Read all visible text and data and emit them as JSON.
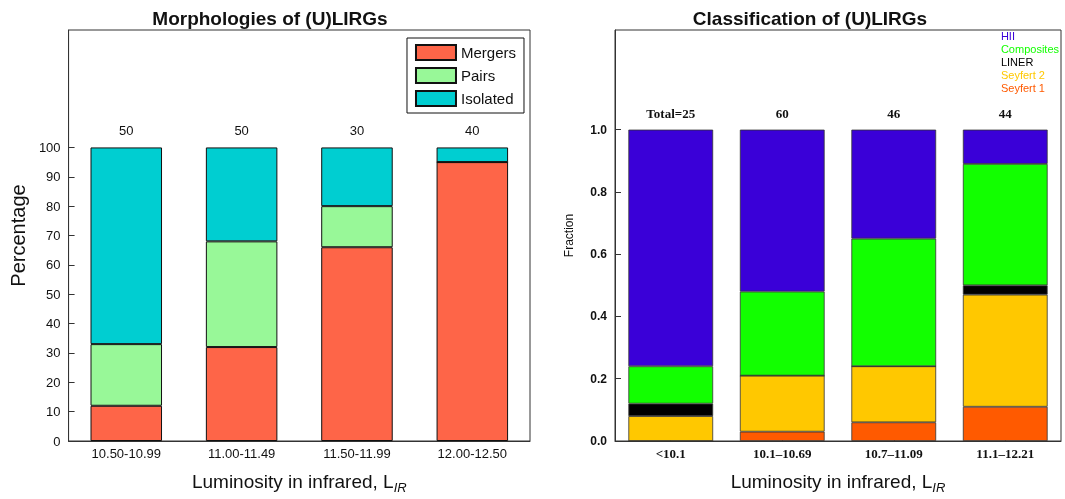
{
  "chart_data": [
    {
      "type": "bar",
      "title": "Morphologies of (U)LIRGs",
      "xlabel": "Luminosity in infrared, L$_{IR}$",
      "ylabel": "Percentage",
      "categories": [
        "10.50-10.99",
        "11.00-11.49",
        "11.50-11.99",
        "12.00-12.50"
      ],
      "stacked": true,
      "legend": "top right",
      "ylim": [
        0,
        140
      ],
      "yticks": [
        0,
        10,
        20,
        30,
        40,
        50,
        60,
        70,
        80,
        90,
        100
      ],
      "annotations": [
        {
          "text": "50",
          "x": "10.50-10.99",
          "y": 100
        },
        {
          "text": "50",
          "x": "11.00-11.49",
          "y": 100
        },
        {
          "text": "30",
          "x": "11.50-11.99",
          "y": 100
        },
        {
          "text": "40",
          "x": "12.00-12.50",
          "y": 100
        }
      ],
      "series": [
        {
          "name": "Mergers",
          "color": "#fe6548",
          "values": [
            12,
            32,
            66,
            95
          ]
        },
        {
          "name": "Pairs",
          "color": "#98f898",
          "values": [
            21,
            36,
            14,
            0
          ]
        },
        {
          "name": "Isolated",
          "color": "#00ced1",
          "values": [
            67,
            32,
            20,
            5
          ]
        }
      ]
    },
    {
      "type": "bar",
      "title": "Classification of (U)LIRGs",
      "xlabel": "Luminosity in infrared, L$_{IR}$",
      "ylabel": "Fraction",
      "categories": [
        "<10.1",
        "10.1–10.69",
        "10.7–11.09",
        "11.1–12.21"
      ],
      "stacked": true,
      "legend": "top right",
      "ylim": [
        0,
        1.32
      ],
      "yticks": [
        {
          "value": 0,
          "label": "0.0"
        },
        {
          "value": 0.2,
          "label": "0.2"
        },
        {
          "value": 0.4,
          "label": "0.4"
        },
        {
          "value": 0.6,
          "label": "0.6"
        },
        {
          "value": 0.8,
          "label": "0.8"
        },
        {
          "value": 1,
          "label": "1.0"
        }
      ],
      "annotations": [
        {
          "text": "Total=25",
          "x": "<10.1",
          "y": 1
        },
        {
          "text": "60",
          "x": "10.1–10.69",
          "y": 1
        },
        {
          "text": "46",
          "x": "10.7–11.09",
          "y": 1
        },
        {
          "text": "44",
          "x": "11.1–12.21",
          "y": 1
        }
      ],
      "series": [
        {
          "name": "Seyfert 1",
          "color": "#ff5a00",
          "values": [
            0,
            0.03,
            0.06,
            0.11
          ]
        },
        {
          "name": "Seyfert 2",
          "color": "#ffc800",
          "values": [
            0.08,
            0.18,
            0.18,
            0.36
          ]
        },
        {
          "name": "LINER",
          "color": "#000000",
          "values": [
            0.04,
            0,
            0,
            0.03
          ]
        },
        {
          "name": "Composites",
          "color": "#12ff00",
          "values": [
            0.12,
            0.27,
            0.41,
            0.39
          ]
        },
        {
          "name": "HII",
          "color": "#3a00d8",
          "values": [
            0.76,
            0.52,
            0.35,
            0.11
          ]
        }
      ]
    }
  ]
}
